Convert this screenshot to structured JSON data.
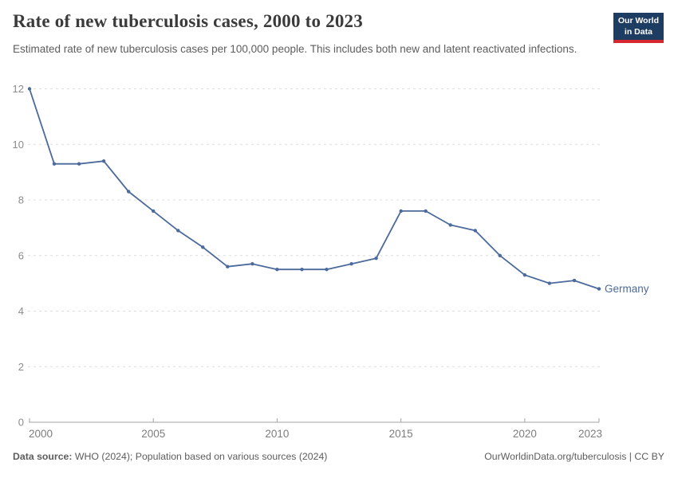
{
  "header": {
    "title": "Rate of new tuberculosis cases, 2000 to 2023",
    "subtitle": "Estimated rate of new tuberculosis cases per 100,000 people. This includes both new and latent reactivated infections."
  },
  "logo": {
    "line1": "Our World",
    "line2": "in Data",
    "bg_color": "#1d3d63",
    "accent_color": "#d7282f"
  },
  "chart_data": {
    "type": "line",
    "title": "Rate of new tuberculosis cases, 2000 to 2023",
    "x": [
      2000,
      2001,
      2002,
      2003,
      2004,
      2005,
      2006,
      2007,
      2008,
      2009,
      2010,
      2011,
      2012,
      2013,
      2014,
      2015,
      2016,
      2017,
      2018,
      2019,
      2020,
      2021,
      2022,
      2023
    ],
    "series": [
      {
        "name": "Germany",
        "color": "#4c6a9c",
        "values": [
          12.0,
          9.3,
          9.3,
          9.4,
          8.3,
          7.6,
          6.9,
          6.3,
          5.6,
          5.7,
          5.5,
          5.5,
          5.5,
          5.7,
          5.9,
          7.6,
          7.6,
          7.1,
          6.9,
          6.0,
          5.3,
          5.0,
          5.1,
          4.8
        ]
      }
    ],
    "ylim": [
      0,
      12
    ],
    "yticks": [
      0,
      2,
      4,
      6,
      8,
      10,
      12
    ],
    "xticks": [
      2000,
      2005,
      2010,
      2015,
      2020,
      2023
    ],
    "xlabel": "",
    "ylabel": "",
    "grid": "horizontal-dashed",
    "legend_position": "end-of-line-label",
    "colors": {
      "grid": "#dddddd",
      "axis": "#a3a3a3",
      "y_tick_text": "#8b8b8b",
      "x_tick_text": "#7d7d7d"
    }
  },
  "footer": {
    "source_label": "Data source:",
    "source_text": " WHO (2024); Population based on various sources (2024)",
    "citation": "OurWorldinData.org/tuberculosis | CC BY"
  }
}
